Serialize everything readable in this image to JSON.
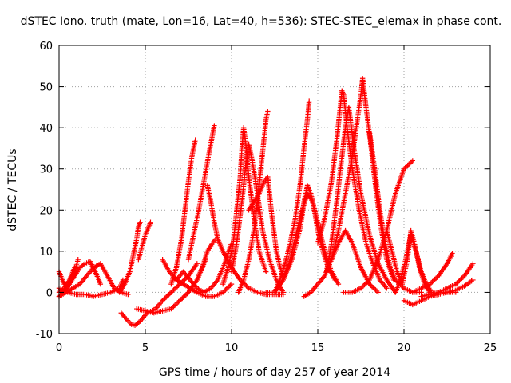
{
  "chart_data": {
    "type": "scatter",
    "title": "dSTEC Iono. truth (mate, Lon=16, Lat=40, h=536): STEC-STEC_elemax in phase cont.",
    "xlabel": "GPS time / hours of day 257 of year 2014",
    "ylabel": "dSTEC  / TECUs",
    "xlim": [
      0,
      25
    ],
    "ylim": [
      -10,
      60
    ],
    "xticks": [
      0,
      5,
      10,
      15,
      20,
      25
    ],
    "yticks": [
      -10,
      0,
      10,
      20,
      30,
      40,
      50,
      60
    ],
    "grid": true,
    "legend": "none",
    "marker": "+",
    "color": "#ff0000",
    "series": [
      {
        "x": [
          0.0,
          0.3,
          0.6,
          0.9,
          1.1
        ],
        "y": [
          5,
          2,
          2,
          5,
          8
        ]
      },
      {
        "x": [
          0.0,
          0.3,
          0.6,
          0.9
        ],
        "y": [
          0,
          1,
          3,
          6
        ]
      },
      {
        "x": [
          0.0,
          0.4,
          0.8,
          1.2,
          1.6,
          2.0,
          2.4,
          2.8,
          3.2,
          3.6,
          4.0
        ],
        "y": [
          -1,
          0,
          1,
          2,
          4,
          6,
          7,
          4,
          1,
          0,
          -0.5
        ]
      },
      {
        "x": [
          0.0,
          0.5,
          1.0,
          1.5,
          2.0,
          2.5,
          3.0,
          3.5,
          3.7
        ],
        "y": [
          1,
          0,
          -0.5,
          -0.5,
          -1,
          -0.5,
          0,
          1,
          3
        ]
      },
      {
        "x": [
          3.5,
          3.8,
          4.1,
          4.3,
          4.5,
          4.6,
          4.7
        ],
        "y": [
          0,
          2,
          5,
          9,
          13,
          16,
          17
        ]
      },
      {
        "x": [
          3.6,
          3.9,
          4.2,
          4.4,
          4.7,
          5.1,
          5.6,
          6.0,
          6.5,
          7.0,
          7.5,
          8.0
        ],
        "y": [
          -5,
          -6.5,
          -7.8,
          -8,
          -7,
          -5,
          -4,
          -2,
          0,
          2,
          4,
          7
        ]
      },
      {
        "x": [
          4.5,
          5.0,
          5.5,
          6.0,
          6.5,
          7.0,
          7.5,
          8.0,
          8.5
        ],
        "y": [
          -4,
          -4.5,
          -5,
          -4.5,
          -4,
          -2,
          0,
          3,
          8
        ]
      },
      {
        "x": [
          4.6,
          4.8,
          5.0,
          5.2,
          5.3
        ],
        "y": [
          8,
          11,
          14,
          16,
          17
        ]
      },
      {
        "x": [
          6.0,
          6.4,
          6.8,
          7.2,
          7.6,
          8.0,
          8.5,
          9.0,
          9.5,
          10.0
        ],
        "y": [
          8,
          5,
          3,
          2,
          1,
          0,
          -1,
          -1,
          0,
          2
        ]
      },
      {
        "x": [
          6.5,
          6.8,
          7.1,
          7.3,
          7.5,
          7.7,
          7.9
        ],
        "y": [
          2,
          6,
          13,
          20,
          27,
          33,
          37
        ]
      },
      {
        "x": [
          6.8,
          7.2,
          7.6,
          8.0,
          8.4,
          8.8,
          9.2,
          9.6,
          10.0
        ],
        "y": [
          3,
          5,
          3,
          1,
          0,
          1,
          3,
          7,
          12
        ]
      },
      {
        "x": [
          7.5,
          7.8,
          8.1,
          8.4,
          8.7,
          9.0
        ],
        "y": [
          8,
          14,
          20,
          27,
          34,
          40.5
        ]
      },
      {
        "x": [
          8.0,
          8.3,
          8.6,
          8.9,
          9.1
        ],
        "y": [
          3,
          6,
          10,
          12,
          13
        ]
      },
      {
        "x": [
          8.6,
          8.8,
          9.0,
          9.2,
          9.5,
          10.0,
          10.5,
          11.0,
          11.5,
          12.0,
          12.5,
          13.0
        ],
        "y": [
          26,
          22,
          17,
          13,
          10,
          6,
          3,
          1,
          0,
          -0.5,
          -0.5,
          -0.5
        ]
      },
      {
        "x": [
          9.5,
          9.8,
          10.1,
          10.3,
          10.5,
          10.6,
          10.7,
          10.8,
          11.0,
          11.3,
          11.6,
          12.0
        ],
        "y": [
          2,
          6,
          12,
          20,
          28,
          35,
          40,
          37,
          28,
          18,
          10,
          5
        ]
      },
      {
        "x": [
          10.0,
          10.3,
          10.6,
          10.8,
          11.0,
          11.2,
          11.5,
          11.8,
          12.2,
          12.6,
          13.0
        ],
        "y": [
          5,
          12,
          22,
          30,
          36,
          32,
          24,
          15,
          8,
          3,
          0
        ]
      },
      {
        "x": [
          10.4,
          10.7,
          11.0,
          11.3,
          11.5,
          11.7,
          11.9,
          12.0,
          12.1
        ],
        "y": [
          0,
          3,
          8,
          15,
          22,
          30,
          38,
          42,
          44
        ]
      },
      {
        "x": [
          11.0,
          11.3,
          11.6,
          11.9,
          12.1,
          12.3,
          12.6,
          13.0
        ],
        "y": [
          20,
          22,
          24,
          27,
          28,
          20,
          10,
          3
        ]
      },
      {
        "x": [
          12.0,
          12.5,
          13.0,
          13.5,
          14.0,
          14.2,
          14.4,
          14.6,
          14.8,
          15.0,
          15.3,
          15.6,
          16.0
        ],
        "y": [
          0,
          0,
          3,
          8,
          16,
          22,
          26,
          24,
          20,
          15,
          10,
          6,
          3
        ]
      },
      {
        "x": [
          12.5,
          12.8,
          13.1,
          13.4,
          13.7,
          14.0,
          14.2,
          14.4,
          14.5
        ],
        "y": [
          0,
          3,
          7,
          12,
          18,
          27,
          35,
          42,
          46.5
        ]
      },
      {
        "x": [
          13.0,
          13.4,
          13.8,
          14.1,
          14.4,
          14.7,
          15.0,
          15.4,
          15.8,
          16.2
        ],
        "y": [
          3,
          8,
          15,
          20,
          24,
          22,
          17,
          10,
          5,
          2
        ]
      },
      {
        "x": [
          14.2,
          14.6,
          15.0,
          15.4,
          15.8,
          16.2,
          16.6,
          17.0,
          17.5,
          18.0,
          18.5
        ],
        "y": [
          -1,
          0,
          2,
          4,
          8,
          12,
          15,
          12,
          6,
          2,
          0
        ]
      },
      {
        "x": [
          15.0,
          15.4,
          15.8,
          16.1,
          16.3,
          16.4,
          16.5,
          16.7,
          17.0,
          17.4,
          17.8,
          18.2,
          18.6,
          19.0
        ],
        "y": [
          12,
          18,
          27,
          37,
          45,
          49,
          48,
          40,
          30,
          20,
          12,
          7,
          3,
          1
        ]
      },
      {
        "x": [
          15.5,
          15.8,
          16.1,
          16.4,
          16.6,
          16.8,
          17.1,
          17.5,
          18.0,
          18.5,
          19.0,
          19.5
        ],
        "y": [
          5,
          12,
          22,
          33,
          40,
          45,
          35,
          24,
          14,
          7,
          3,
          0
        ]
      },
      {
        "x": [
          15.8,
          16.2,
          16.6,
          17.0,
          17.3,
          17.5,
          17.6,
          17.8,
          18.1,
          18.4,
          18.7,
          19.0,
          19.4
        ],
        "y": [
          8,
          15,
          24,
          33,
          42,
          48,
          52,
          45,
          35,
          24,
          15,
          8,
          3
        ]
      },
      {
        "x": [
          16.5,
          17.0,
          17.5,
          18.0,
          18.5,
          19.0,
          19.5,
          20.0,
          20.5
        ],
        "y": [
          0,
          0,
          1,
          3,
          8,
          15,
          24,
          30,
          32
        ]
      },
      {
        "x": [
          18.0,
          18.3,
          18.6,
          18.9,
          19.2,
          19.5,
          20.0,
          20.5,
          21.0
        ],
        "y": [
          39,
          30,
          20,
          12,
          6,
          3,
          1,
          0,
          0
        ]
      },
      {
        "x": [
          19.0,
          19.3,
          19.6,
          19.9,
          20.2,
          20.4,
          20.6,
          20.9,
          21.2,
          21.5
        ],
        "y": [
          15,
          10,
          5,
          2,
          8,
          15,
          12,
          6,
          2,
          0
        ]
      },
      {
        "x": [
          19.5,
          19.8,
          20.1,
          20.4,
          20.7,
          21.0,
          21.3,
          21.6
        ],
        "y": [
          0,
          3,
          8,
          14,
          10,
          5,
          2,
          0
        ]
      },
      {
        "x": [
          20.0,
          20.5,
          21.0,
          21.5,
          22.0,
          22.5,
          23.0
        ],
        "y": [
          -2,
          -3,
          -2,
          -1,
          0,
          0,
          0
        ]
      },
      {
        "x": [
          20.5,
          21.0,
          21.5,
          22.0,
          22.5,
          22.8
        ],
        "y": [
          0,
          1,
          2,
          4,
          7,
          9.5
        ]
      },
      {
        "x": [
          21.0,
          21.5,
          22.0,
          22.5,
          23.0,
          23.5,
          24.0
        ],
        "y": [
          -1,
          -0.5,
          0,
          1,
          2,
          4,
          7
        ]
      },
      {
        "x": [
          21.5,
          22.0,
          22.5,
          23.0,
          23.5,
          24.0
        ],
        "y": [
          -1,
          -0.5,
          0,
          0.5,
          1.5,
          3
        ]
      },
      {
        "x": [
          0.0,
          0.3,
          0.6,
          0.9,
          1.2,
          1.5,
          1.8,
          2.1,
          2.4
        ],
        "y": [
          -1,
          0,
          2,
          4,
          6,
          7,
          7.5,
          5,
          2
        ]
      }
    ]
  }
}
